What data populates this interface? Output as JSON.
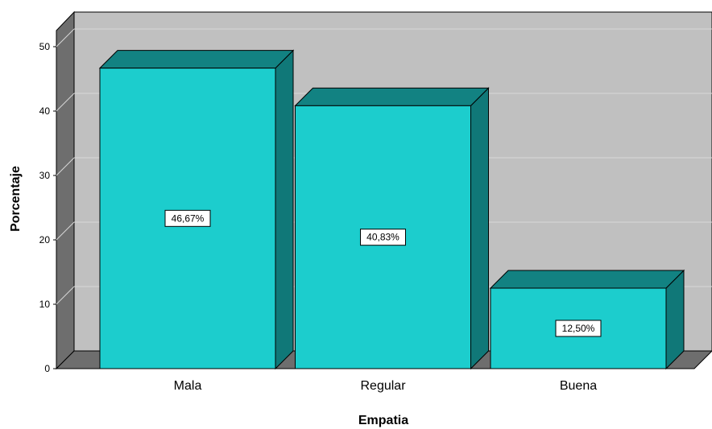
{
  "chart_data": {
    "type": "bar",
    "title": "",
    "xlabel": "Empatia",
    "ylabel": "Porcentaje",
    "categories": [
      "Mala",
      "Regular",
      "Buena"
    ],
    "values": [
      46.67,
      40.83,
      12.5
    ],
    "data_labels": [
      "46,67%",
      "40,83%",
      "12,50%"
    ],
    "ylim": [
      0,
      50
    ],
    "yticks": [
      0,
      10,
      20,
      30,
      40,
      50
    ],
    "ytick_labels": [
      "0",
      "10",
      "20",
      "30",
      "40",
      "50"
    ],
    "grid": true,
    "legend": "none",
    "style": "3d",
    "colors": {
      "bar_front": "#1ccdcd",
      "bar_top": "#128282",
      "bar_side": "#107878",
      "plot_back": "#c0c0c0",
      "plot_floor": "#6e6e6e",
      "plot_wall": "#6e6e6e",
      "gridline": "#d8d8d8"
    }
  }
}
